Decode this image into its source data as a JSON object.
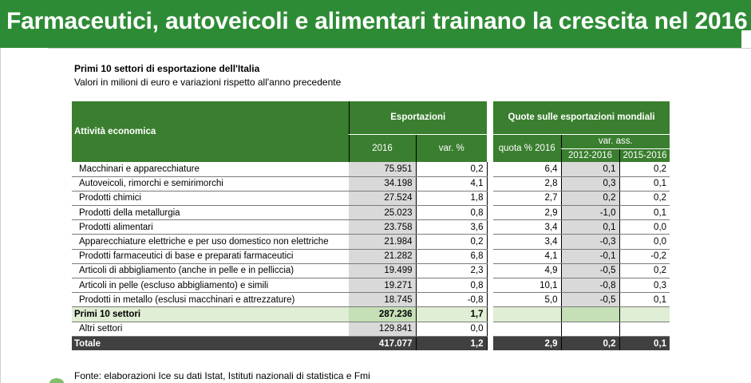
{
  "banner": {
    "title": "Farmaceutici, autoveicoli e alimentari trainano la crescita nel 2016"
  },
  "table": {
    "title": "Primi 10 settori di esportazione dell'Italia",
    "subtitle": "Valori in milioni di euro e variazioni rispetto all'anno precedente",
    "headers": {
      "attivita": "Attività economica",
      "esportazioni": "Esportazioni",
      "quote": "Quote sulle esportazioni mondiali",
      "anno": "2016",
      "var_pct": "var. %",
      "quota": "quota % 2016",
      "var_ass": "var. ass.",
      "p1": "2012-2016",
      "p2": "2015-2016"
    },
    "rows": [
      {
        "name": "Macchinari e apparecchiature",
        "val": "75.951",
        "var": "0,2",
        "quota": "6,4",
        "v1": "0,1",
        "v2": "0,2"
      },
      {
        "name": "Autoveicoli, rimorchi e semirimorchi",
        "val": "34.198",
        "var": "4,1",
        "quota": "2,8",
        "v1": "0,3",
        "v2": "0,1"
      },
      {
        "name": "Prodotti chimici",
        "val": "27.524",
        "var": "1,8",
        "quota": "2,7",
        "v1": "0,2",
        "v2": "0,2"
      },
      {
        "name": "Prodotti della metallurgia",
        "val": "25.023",
        "var": "0,8",
        "quota": "2,9",
        "v1": "-1,0",
        "v2": "0,1"
      },
      {
        "name": "Prodotti alimentari",
        "val": "23.758",
        "var": "3,6",
        "quota": "3,4",
        "v1": "0,1",
        "v2": "0,0"
      },
      {
        "name": "Apparecchiature elettriche e per uso domestico non elettriche",
        "val": "21.984",
        "var": "0,2",
        "quota": "3,4",
        "v1": "-0,3",
        "v2": "0,0"
      },
      {
        "name": "Prodotti farmaceutici di base e preparati farmaceutici",
        "val": "21.282",
        "var": "6,8",
        "quota": "4,1",
        "v1": "-0,1",
        "v2": "-0,2"
      },
      {
        "name": "Articoli di abbigliamento (anche in pelle e in pelliccia)",
        "val": "19.499",
        "var": "2,3",
        "quota": "4,9",
        "v1": "-0,5",
        "v2": "0,2"
      },
      {
        "name": "Articoli in pelle (escluso abbigliamento) e simili",
        "val": "19.271",
        "var": "0,8",
        "quota": "10,1",
        "v1": "-0,8",
        "v2": "0,3"
      },
      {
        "name": "Prodotti in metallo (esclusi macchinari e attrezzature)",
        "val": "18.745",
        "var": "-0,8",
        "quota": "5,0",
        "v1": "-0,5",
        "v2": "0,1"
      }
    ],
    "primi": {
      "name": "Primi 10 settori",
      "val": "287.236",
      "var": "1,7"
    },
    "altri": {
      "name": "Altri settori",
      "val": "129.841",
      "var": "0,0"
    },
    "totale": {
      "name": "Totale",
      "val": "417.077",
      "var": "1,2",
      "quota": "2,9",
      "v1": "0,2",
      "v2": "0,1"
    }
  },
  "source": "Fonte: elaborazioni Ice su dati Istat, Istituti nazionali di statistica e Fmi",
  "colors": {
    "banner": "#2e8b35",
    "header": "#3a7e2f",
    "total_row": "#404040",
    "subtotal_row": "#dfeed4"
  }
}
